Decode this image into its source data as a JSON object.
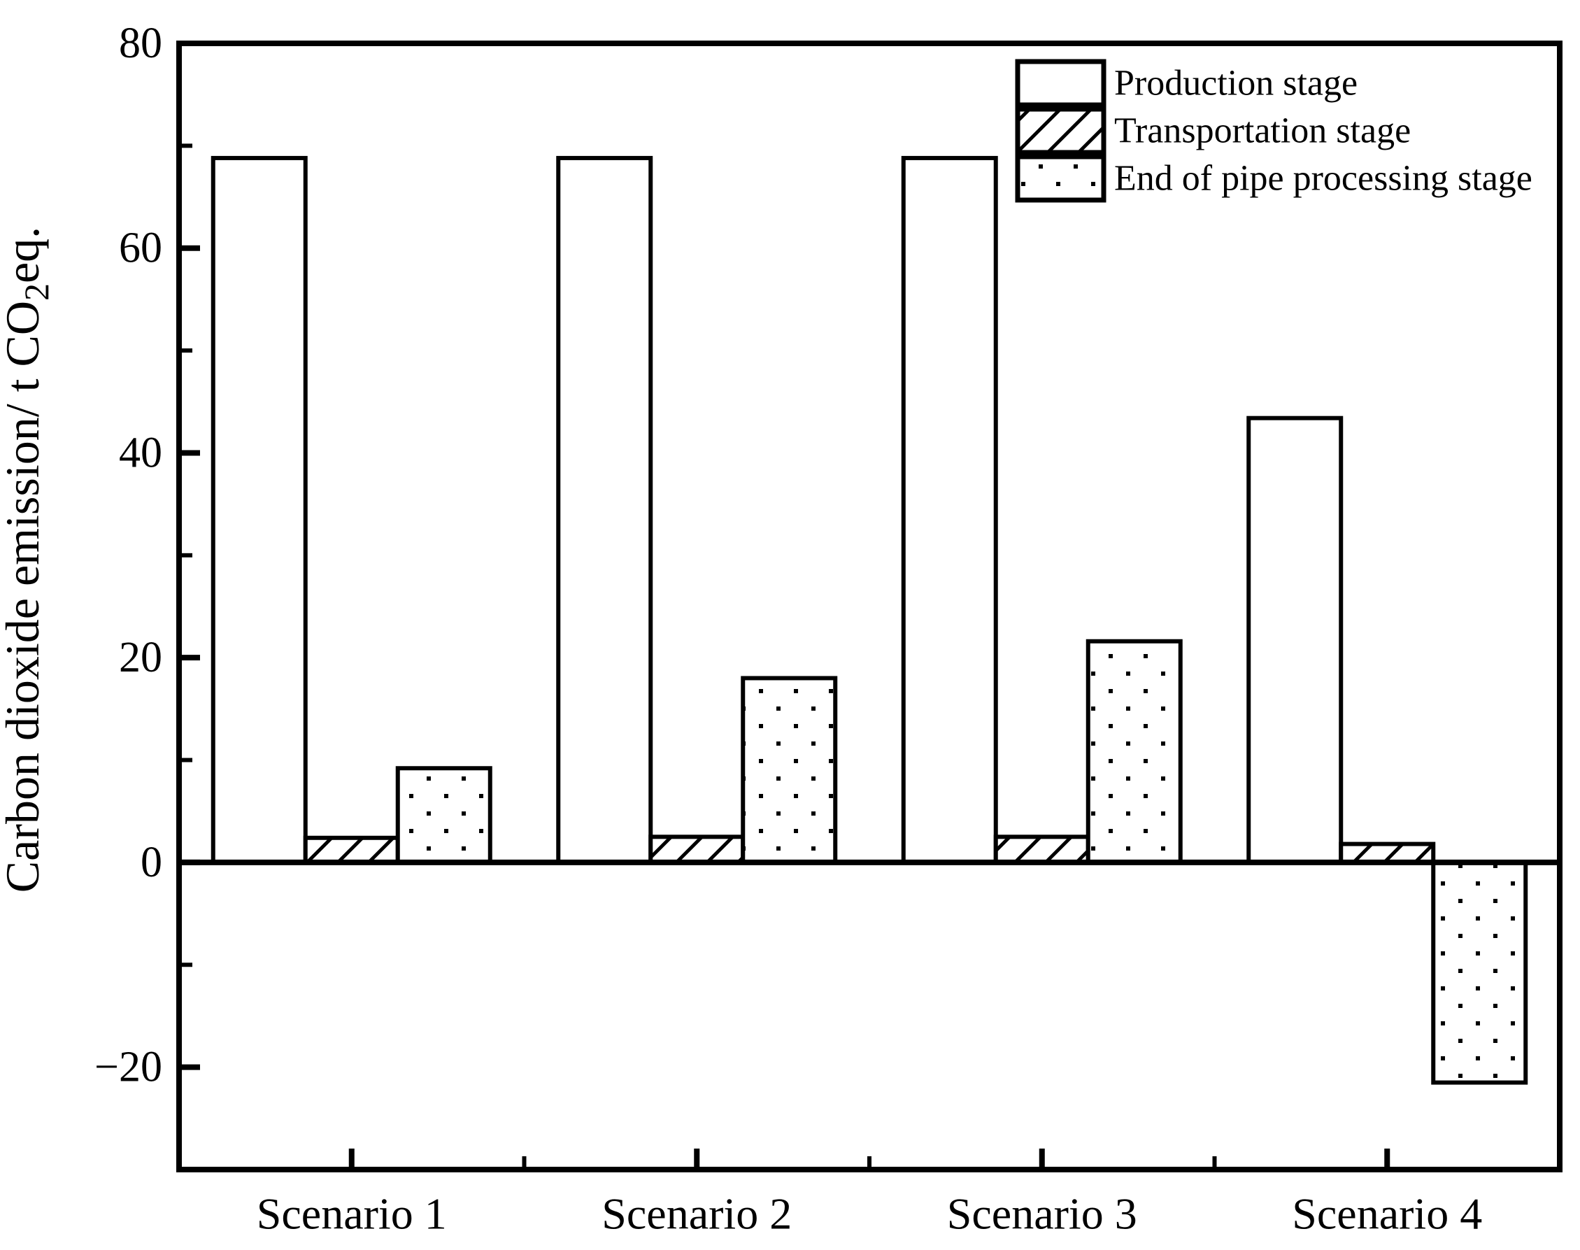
{
  "chart_data": {
    "type": "bar",
    "title": "",
    "xlabel": "",
    "ylabel": "Carbon dioxide emission/ t CO2eq.",
    "ylabel_parts": {
      "pre": "Carbon dioxide emission/ t CO",
      "sub": "2",
      "post": "eq."
    },
    "categories": [
      "Scenario 1",
      "Scenario 2",
      "Scenario 3",
      "Scenario 4"
    ],
    "series": [
      {
        "name": "Production stage",
        "pattern": "solid-white",
        "values": [
          68.8,
          68.8,
          68.8,
          43.4
        ]
      },
      {
        "name": "Transportation stage",
        "pattern": "diagonal-hatch",
        "values": [
          2.4,
          2.5,
          2.5,
          1.8
        ]
      },
      {
        "name": "End of pipe processing stage",
        "pattern": "dots",
        "values": [
          9.2,
          18.0,
          21.6,
          -21.5
        ]
      }
    ],
    "ylim": [
      -30,
      80
    ],
    "yticks_major": [
      80,
      60,
      40,
      20,
      0,
      -20
    ],
    "ytick_labels": [
      "80",
      "60",
      "40",
      "20",
      "0",
      "−20"
    ],
    "yticks_minor": [
      70,
      50,
      30,
      10,
      -10
    ],
    "baseline": 0,
    "grid": false,
    "legend_position": "top-right",
    "legend_frame": false,
    "colors": {
      "foreground": "#000000",
      "background": "#ffffff"
    }
  }
}
